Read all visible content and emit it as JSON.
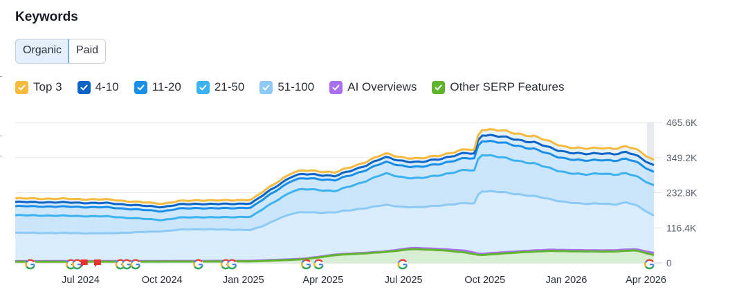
{
  "header": {
    "title": "Keywords"
  },
  "tabs": [
    {
      "label": "Organic",
      "active": true
    },
    {
      "label": "Paid",
      "active": false
    }
  ],
  "legend": [
    {
      "label": "Top 3",
      "color": "#f6bb3e"
    },
    {
      "label": "4-10",
      "color": "#0b63c6"
    },
    {
      "label": "11-20",
      "color": "#1a8fe8"
    },
    {
      "label": "21-50",
      "color": "#3db2f0"
    },
    {
      "label": "51-100",
      "color": "#8ccaf5"
    },
    {
      "label": "AI Overviews",
      "color": "#a86ff0"
    },
    {
      "label": "Other SERP Features",
      "color": "#61b52e"
    }
  ],
  "chart_data": {
    "type": "area",
    "title": "Keywords",
    "x_start": "2024-04-18",
    "x_end": "2026-04-10",
    "x_tick_labels": [
      "Jul 2024",
      "Oct 2024",
      "Jan 2025",
      "Apr 2025",
      "Jul 2025",
      "Oct 2025",
      "Jan 2026",
      "Apr 2026"
    ],
    "y_tick_labels": [
      "465.6K",
      "349.2K",
      "232.8K",
      "116.4K",
      "0"
    ],
    "ylim": [
      0,
      465600
    ],
    "series": [
      {
        "name": "Top 3",
        "color": "#f6bb3e",
        "points": [
          [
            "2024-04-18",
            214000
          ],
          [
            "2024-06-01",
            213000
          ],
          [
            "2024-08-01",
            210000
          ],
          [
            "2024-10-01",
            196000
          ],
          [
            "2024-10-20",
            205000
          ],
          [
            "2024-11-15",
            208000
          ],
          [
            "2024-12-15",
            207000
          ],
          [
            "2025-01-10",
            210000
          ],
          [
            "2025-01-25",
            240000
          ],
          [
            "2025-02-10",
            272000
          ],
          [
            "2025-02-25",
            300000
          ],
          [
            "2025-03-10",
            306000
          ],
          [
            "2025-03-25",
            305000
          ],
          [
            "2025-04-15",
            300000
          ],
          [
            "2025-05-10",
            325000
          ],
          [
            "2025-06-10",
            362000
          ],
          [
            "2025-07-01",
            350000
          ],
          [
            "2025-07-20",
            345000
          ],
          [
            "2025-08-15",
            360000
          ],
          [
            "2025-09-10",
            376000
          ],
          [
            "2025-09-20",
            375000
          ],
          [
            "2025-09-25",
            445000
          ],
          [
            "2025-10-15",
            440000
          ],
          [
            "2025-11-01",
            432000
          ],
          [
            "2025-11-25",
            420000
          ],
          [
            "2025-12-15",
            400000
          ],
          [
            "2026-01-01",
            385000
          ],
          [
            "2026-01-20",
            378000
          ],
          [
            "2026-02-10",
            383000
          ],
          [
            "2026-02-25",
            378000
          ],
          [
            "2026-03-10",
            385000
          ],
          [
            "2026-03-20",
            380000
          ],
          [
            "2026-04-10",
            340000
          ]
        ]
      },
      {
        "name": "4-10",
        "color": "#0b63c6",
        "points": [
          [
            "2024-04-18",
            202000
          ],
          [
            "2024-06-01",
            201000
          ],
          [
            "2024-08-01",
            198000
          ],
          [
            "2024-10-01",
            185000
          ],
          [
            "2024-10-20",
            194000
          ],
          [
            "2024-11-15",
            196000
          ],
          [
            "2024-12-15",
            195000
          ],
          [
            "2025-01-10",
            198000
          ],
          [
            "2025-01-25",
            228000
          ],
          [
            "2025-02-10",
            260000
          ],
          [
            "2025-02-25",
            288000
          ],
          [
            "2025-03-10",
            294000
          ],
          [
            "2025-03-25",
            293000
          ],
          [
            "2025-04-15",
            288000
          ],
          [
            "2025-05-10",
            313000
          ],
          [
            "2025-06-10",
            350000
          ],
          [
            "2025-07-01",
            338000
          ],
          [
            "2025-07-20",
            333000
          ],
          [
            "2025-08-15",
            348000
          ],
          [
            "2025-09-10",
            364000
          ],
          [
            "2025-09-20",
            362000
          ],
          [
            "2025-09-25",
            427000
          ],
          [
            "2025-10-15",
            420000
          ],
          [
            "2025-11-01",
            412000
          ],
          [
            "2025-11-25",
            400000
          ],
          [
            "2025-12-15",
            380000
          ],
          [
            "2026-01-01",
            368000
          ],
          [
            "2026-01-20",
            360000
          ],
          [
            "2026-02-10",
            365000
          ],
          [
            "2026-02-25",
            360000
          ],
          [
            "2026-03-10",
            366000
          ],
          [
            "2026-03-20",
            360000
          ],
          [
            "2026-04-10",
            322000
          ]
        ]
      },
      {
        "name": "11-20",
        "color": "#1a8fe8",
        "points": [
          [
            "2024-04-18",
            188000
          ],
          [
            "2024-06-01",
            187000
          ],
          [
            "2024-08-01",
            184000
          ],
          [
            "2024-10-01",
            171000
          ],
          [
            "2024-10-20",
            180000
          ],
          [
            "2024-11-15",
            182000
          ],
          [
            "2024-12-15",
            181000
          ],
          [
            "2025-01-10",
            184000
          ],
          [
            "2025-01-25",
            214000
          ],
          [
            "2025-02-10",
            246000
          ],
          [
            "2025-02-25",
            274000
          ],
          [
            "2025-03-10",
            280000
          ],
          [
            "2025-03-25",
            279000
          ],
          [
            "2025-04-15",
            274000
          ],
          [
            "2025-05-10",
            298000
          ],
          [
            "2025-06-10",
            334000
          ],
          [
            "2025-07-01",
            322000
          ],
          [
            "2025-07-20",
            317000
          ],
          [
            "2025-08-15",
            332000
          ],
          [
            "2025-09-10",
            347000
          ],
          [
            "2025-09-20",
            346000
          ],
          [
            "2025-09-25",
            408000
          ],
          [
            "2025-10-15",
            400000
          ],
          [
            "2025-11-01",
            392000
          ],
          [
            "2025-11-25",
            378000
          ],
          [
            "2025-12-15",
            358000
          ],
          [
            "2026-01-01",
            346000
          ],
          [
            "2026-01-20",
            338000
          ],
          [
            "2026-02-10",
            343000
          ],
          [
            "2026-02-25",
            338000
          ],
          [
            "2026-03-10",
            344000
          ],
          [
            "2026-03-20",
            338000
          ],
          [
            "2026-04-10",
            300000
          ]
        ]
      },
      {
        "name": "21-50",
        "color": "#3db2f0",
        "points": [
          [
            "2024-04-18",
            158000
          ],
          [
            "2024-06-01",
            157000
          ],
          [
            "2024-08-01",
            154000
          ],
          [
            "2024-10-01",
            142000
          ],
          [
            "2024-10-20",
            150000
          ],
          [
            "2024-11-15",
            152000
          ],
          [
            "2024-12-15",
            151000
          ],
          [
            "2025-01-10",
            154000
          ],
          [
            "2025-01-25",
            182000
          ],
          [
            "2025-02-10",
            212000
          ],
          [
            "2025-02-25",
            238000
          ],
          [
            "2025-03-10",
            244000
          ],
          [
            "2025-03-25",
            243000
          ],
          [
            "2025-04-15",
            238000
          ],
          [
            "2025-05-10",
            262000
          ],
          [
            "2025-06-10",
            296000
          ],
          [
            "2025-07-01",
            284000
          ],
          [
            "2025-07-20",
            280000
          ],
          [
            "2025-08-15",
            294000
          ],
          [
            "2025-09-10",
            308000
          ],
          [
            "2025-09-20",
            306000
          ],
          [
            "2025-09-25",
            362000
          ],
          [
            "2025-10-15",
            352000
          ],
          [
            "2025-11-01",
            342000
          ],
          [
            "2025-11-25",
            330000
          ],
          [
            "2025-12-15",
            312000
          ],
          [
            "2026-01-01",
            300000
          ],
          [
            "2026-01-20",
            292000
          ],
          [
            "2026-02-10",
            298000
          ],
          [
            "2026-02-25",
            292000
          ],
          [
            "2026-03-10",
            296000
          ],
          [
            "2026-03-20",
            290000
          ],
          [
            "2026-04-10",
            256000
          ]
        ]
      },
      {
        "name": "51-100",
        "color": "#8ccaf5",
        "points": [
          [
            "2024-04-18",
            100000
          ],
          [
            "2024-06-01",
            99000
          ],
          [
            "2024-08-01",
            98000
          ],
          [
            "2024-10-01",
            105000
          ],
          [
            "2024-10-20",
            110000
          ],
          [
            "2024-11-15",
            112000
          ],
          [
            "2024-12-15",
            110000
          ],
          [
            "2025-01-10",
            110000
          ],
          [
            "2025-01-25",
            124000
          ],
          [
            "2025-02-10",
            148000
          ],
          [
            "2025-02-25",
            164000
          ],
          [
            "2025-03-10",
            168000
          ],
          [
            "2025-03-25",
            167000
          ],
          [
            "2025-04-15",
            168000
          ],
          [
            "2025-05-10",
            178000
          ],
          [
            "2025-06-10",
            192000
          ],
          [
            "2025-07-01",
            186000
          ],
          [
            "2025-07-20",
            184000
          ],
          [
            "2025-08-15",
            192000
          ],
          [
            "2025-09-10",
            198000
          ],
          [
            "2025-09-20",
            197000
          ],
          [
            "2025-09-25",
            240000
          ],
          [
            "2025-10-15",
            236000
          ],
          [
            "2025-11-01",
            230000
          ],
          [
            "2025-11-25",
            222000
          ],
          [
            "2025-12-15",
            210000
          ],
          [
            "2026-01-01",
            202000
          ],
          [
            "2026-01-20",
            195000
          ],
          [
            "2026-02-10",
            198000
          ],
          [
            "2026-02-25",
            193000
          ],
          [
            "2026-03-10",
            200000
          ],
          [
            "2026-03-20",
            194000
          ],
          [
            "2026-04-10",
            156000
          ]
        ]
      },
      {
        "name": "AI Overviews",
        "color": "#a86ff0",
        "points": [
          [
            "2024-04-18",
            6000
          ],
          [
            "2024-10-01",
            6500
          ],
          [
            "2025-01-10",
            7000
          ],
          [
            "2025-03-10",
            14000
          ],
          [
            "2025-04-15",
            28000
          ],
          [
            "2025-06-10",
            38000
          ],
          [
            "2025-07-10",
            50000
          ],
          [
            "2025-08-15",
            46000
          ],
          [
            "2025-09-10",
            40000
          ],
          [
            "2025-09-25",
            30000
          ],
          [
            "2025-10-15",
            34000
          ],
          [
            "2025-11-15",
            40000
          ],
          [
            "2025-12-15",
            44000
          ],
          [
            "2026-01-20",
            42000
          ],
          [
            "2026-02-25",
            42000
          ],
          [
            "2026-03-20",
            46000
          ],
          [
            "2026-04-10",
            33000
          ]
        ]
      },
      {
        "name": "Other SERP Features",
        "color": "#61b52e",
        "points": [
          [
            "2024-04-18",
            4000
          ],
          [
            "2024-10-01",
            4500
          ],
          [
            "2025-01-10",
            5000
          ],
          [
            "2025-03-10",
            12000
          ],
          [
            "2025-04-15",
            26000
          ],
          [
            "2025-06-10",
            36000
          ],
          [
            "2025-07-10",
            46000
          ],
          [
            "2025-08-15",
            42000
          ],
          [
            "2025-09-10",
            34000
          ],
          [
            "2025-09-25",
            26000
          ],
          [
            "2025-10-15",
            30000
          ],
          [
            "2025-11-15",
            36000
          ],
          [
            "2025-12-15",
            40000
          ],
          [
            "2026-01-20",
            38000
          ],
          [
            "2026-02-25",
            38000
          ],
          [
            "2026-03-20",
            42000
          ],
          [
            "2026-04-10",
            26000
          ]
        ]
      }
    ],
    "annotations": [
      {
        "type": "google-update",
        "date": "2024-05-05"
      },
      {
        "type": "google-update",
        "date": "2024-06-20"
      },
      {
        "type": "google-update",
        "date": "2024-06-27"
      },
      {
        "type": "flag",
        "date": "2024-07-05"
      },
      {
        "type": "flag",
        "date": "2024-07-20"
      },
      {
        "type": "google-update",
        "date": "2024-08-15"
      },
      {
        "type": "google-update",
        "date": "2024-08-22"
      },
      {
        "type": "google-update",
        "date": "2024-09-01"
      },
      {
        "type": "google-update",
        "date": "2024-11-11"
      },
      {
        "type": "google-update",
        "date": "2024-12-12"
      },
      {
        "type": "google-update",
        "date": "2024-12-19"
      },
      {
        "type": "google-update",
        "date": "2025-03-13"
      },
      {
        "type": "google-update",
        "date": "2025-03-27"
      },
      {
        "type": "google-update",
        "date": "2025-06-30"
      },
      {
        "type": "google-update",
        "date": "2026-04-05"
      }
    ]
  }
}
